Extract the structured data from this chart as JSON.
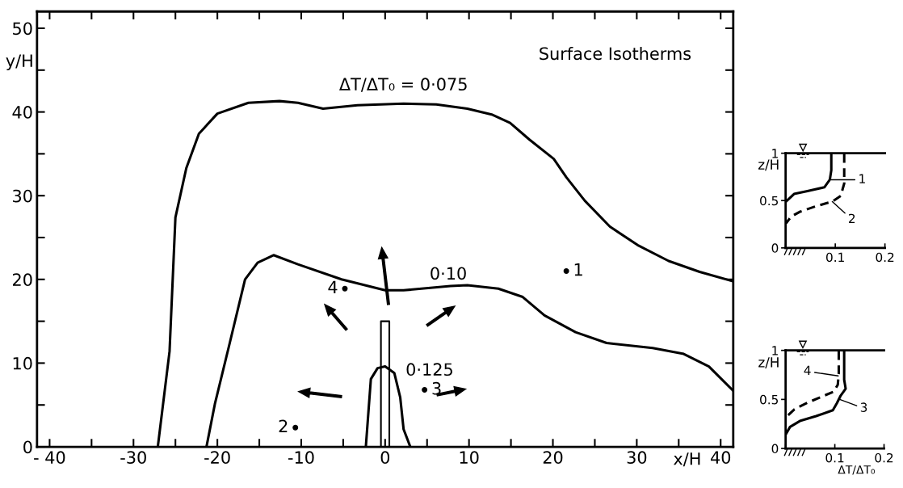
{
  "chart_data": [
    {
      "type": "line",
      "xlabel": "x/H",
      "ylabel": "y/H",
      "xlim": [
        -41.5,
        41.5
      ],
      "ylim": [
        0,
        52
      ],
      "xticks": [
        {
          "value": -40,
          "label": "- 40"
        },
        {
          "value": -35,
          "label": null
        },
        -30,
        {
          "value": -25,
          "label": null
        },
        -20,
        {
          "value": -15,
          "label": null
        },
        -10,
        {
          "value": -5,
          "label": null
        },
        0,
        {
          "value": 5,
          "label": null
        },
        10,
        {
          "value": 15,
          "label": null
        },
        20,
        {
          "value": 25,
          "label": null
        },
        30,
        {
          "value": 35,
          "label": null
        },
        40
      ],
      "yticks": [
        0,
        {
          "value": 5,
          "label": null
        },
        10,
        {
          "value": 15,
          "label": null
        },
        20,
        {
          "value": 25,
          "label": null
        },
        30,
        {
          "value": 35,
          "label": null
        },
        40,
        {
          "value": 45,
          "label": null
        },
        50
      ],
      "series": [
        {
          "color": "#000000",
          "line_style": "solid",
          "x": [
            -27.1,
            -25.7,
            -25.0,
            -23.7,
            -22.2,
            -20.0,
            -16.3,
            -12.6,
            -10.4,
            -7.4,
            -3.3,
            2.2,
            6.1,
            9.8,
            12.7,
            14.9,
            17.2,
            20.1,
            21.6,
            23.8,
            26.8,
            30.1,
            33.8,
            37.5,
            41.4
          ],
          "values": [
            0,
            11.4,
            27.4,
            33.3,
            37.4,
            39.8,
            41.1,
            41.3,
            41.1,
            40.4,
            40.8,
            41.0,
            40.9,
            40.4,
            39.7,
            38.7,
            36.7,
            34.4,
            32.2,
            29.4,
            26.3,
            24.1,
            22.2,
            20.9,
            19.8
          ]
        },
        {
          "color": "#000000",
          "line_style": "solid",
          "x": [
            -21.3,
            -20.3,
            -18.5,
            -16.7,
            -15.2,
            -13.3,
            -10.4,
            -5.2,
            0,
            2.2,
            7.8,
            9.8,
            13.5,
            16.4,
            19.0,
            22.7,
            26.4,
            31.9,
            35.6,
            38.6,
            41.4
          ],
          "values": [
            0,
            5.1,
            12.5,
            20.0,
            22.0,
            22.9,
            21.8,
            20.0,
            18.7,
            18.7,
            19.2,
            19.3,
            18.9,
            17.9,
            15.7,
            13.7,
            12.4,
            11.8,
            11.1,
            9.6,
            6.8
          ]
        },
        {
          "color": "#000000",
          "line_style": "solid",
          "x": [
            -2.3,
            -1.7,
            -0.9,
            0,
            1.1,
            1.8,
            2.2,
            3.0
          ],
          "values": [
            0,
            8.1,
            9.4,
            9.6,
            8.8,
            5.9,
            2.1,
            0
          ]
        },
        {
          "type": "scatter",
          "color": "#000000",
          "marker": "circle",
          "x": [
            21.6,
            -10.7,
            4.7,
            -4.8
          ],
          "values": [
            21.0,
            2.3,
            6.8,
            18.9
          ]
        }
      ],
      "annotations": [
        "Surface Isotherms",
        {
          "text": "ΔT/ΔT₀ = 0·075",
          "x": 2.2,
          "y": 41.0
        },
        {
          "text": "0·10",
          "x": 7.8,
          "y": 19.2
        },
        {
          "text": "0·125",
          "x": 1.1,
          "y": 8.8
        },
        {
          "text": "1",
          "x": 21.6,
          "y": 21.0
        },
        {
          "text": "2",
          "x": -10.7,
          "y": 2.3
        },
        {
          "text": "3",
          "x": 4.7,
          "y": 6.8
        },
        {
          "text": "4",
          "x": -4.8,
          "y": 18.9
        }
      ]
    },
    {
      "type": "line",
      "ylabel": "z/H",
      "xlim": [
        0,
        0.2
      ],
      "ylim": [
        0,
        1
      ],
      "xticks": [
        {
          "value": 0,
          "label": null
        },
        0.1,
        0.2
      ],
      "yticks": [
        0,
        0.5,
        1
      ],
      "series": [
        {
          "color": "#000000",
          "line_style": "solid",
          "x": [
            0.092,
            0.092,
            0.089,
            0.078,
            0.044,
            0.017,
            0.001
          ],
          "values": [
            0.99,
            0.82,
            0.72,
            0.64,
            0.6,
            0.57,
            0.49
          ]
        },
        {
          "color": "#000000",
          "line_style": "dashed",
          "x": [
            0.118,
            0.118,
            0.111,
            0.094,
            0.061,
            0.028,
            0.011,
            0.001
          ],
          "values": [
            0.99,
            0.68,
            0.55,
            0.49,
            0.44,
            0.38,
            0.33,
            0.26
          ]
        }
      ],
      "annotations": [
        {
          "text": "1",
          "x": 0.092,
          "y": 0.72
        },
        {
          "text": "2",
          "x": 0.094,
          "y": 0.489
        }
      ]
    },
    {
      "type": "line",
      "ylabel": "z/H",
      "xlabel": "ΔT/ΔT₀",
      "xlim": [
        0,
        0.2
      ],
      "ylim": [
        0,
        1
      ],
      "xticks": [
        {
          "value": 0,
          "label": null
        },
        0.1,
        0.2
      ],
      "yticks": [
        0,
        0.5,
        1
      ],
      "series": [
        {
          "color": "#000000",
          "line_style": "solid",
          "x": [
            0.119,
            0.119,
            0.122,
            0.112,
            0.104,
            0.096,
            0.062,
            0.029,
            0.009,
            0.001
          ],
          "values": [
            0.99,
            0.7,
            0.61,
            0.54,
            0.46,
            0.39,
            0.33,
            0.28,
            0.22,
            0.15
          ]
        },
        {
          "color": "#000000",
          "line_style": "dashed",
          "x": [
            0.108,
            0.108,
            0.106,
            0.098,
            0.079,
            0.046,
            0.018,
            0.001
          ],
          "values": [
            0.99,
            0.76,
            0.65,
            0.58,
            0.54,
            0.47,
            0.4,
            0.32
          ]
        }
      ],
      "annotations": [
        {
          "text": "3",
          "x": 0.11,
          "y": 0.5
        },
        {
          "text": "4",
          "x": 0.107,
          "y": 0.74
        }
      ]
    }
  ]
}
